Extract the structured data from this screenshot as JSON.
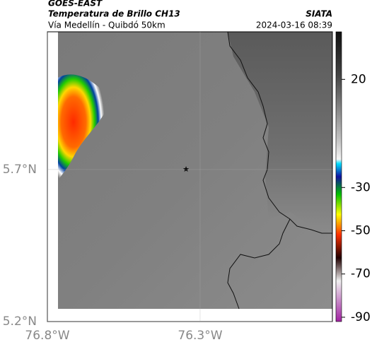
{
  "header": {
    "title": "GOES-EAST",
    "subtitle": "Temperatura de Brillo CH13",
    "route": "Vía Medellín - Quibdó 50km",
    "source": "SIATA",
    "datetime": "2024-03-16 08:39"
  },
  "map": {
    "xlim": [
      -76.8,
      -75.867
    ],
    "ylim": [
      5.2,
      6.153
    ],
    "xticks": [
      {
        "value": -76.8,
        "label": "76.8°W"
      },
      {
        "value": -76.3,
        "label": "76.3°W"
      }
    ],
    "yticks": [
      {
        "value": 5.7,
        "label": "5.7°N"
      },
      {
        "value": 5.2,
        "label": "5.2°N"
      }
    ]
  },
  "colorbar": {
    "lim": [
      -92,
      42
    ],
    "ticks": [
      20,
      -30,
      -50,
      -70,
      -90
    ]
  }
}
